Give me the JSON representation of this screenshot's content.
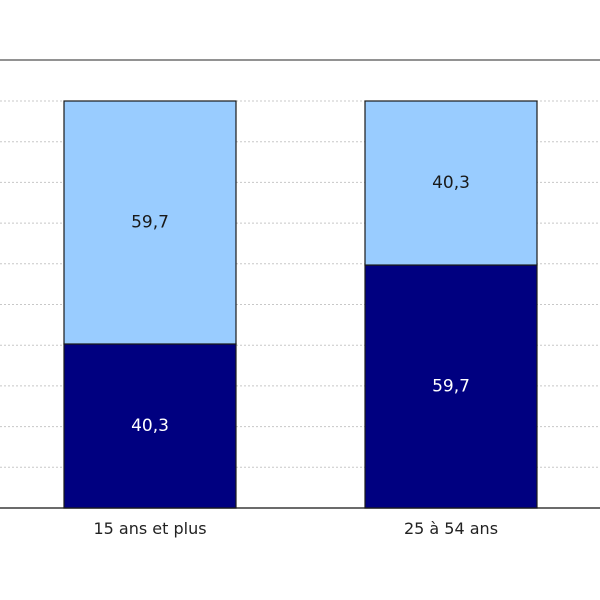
{
  "chart_data": {
    "type": "bar",
    "stacked": true,
    "percent_stacked": true,
    "categories": [
      "15 ans et plus",
      "25 à 54 ans"
    ],
    "series": [
      {
        "values": [
          40.3,
          59.7
        ],
        "color": "#000080",
        "label_color": "#ffffff"
      },
      {
        "values": [
          59.7,
          40.3
        ],
        "color": "#99ccff",
        "label_color": "#1a1a1a"
      }
    ],
    "ylim": [
      0,
      100
    ],
    "grid": true,
    "grid_step": 10,
    "title": "",
    "xlabel": "",
    "ylabel": ""
  }
}
